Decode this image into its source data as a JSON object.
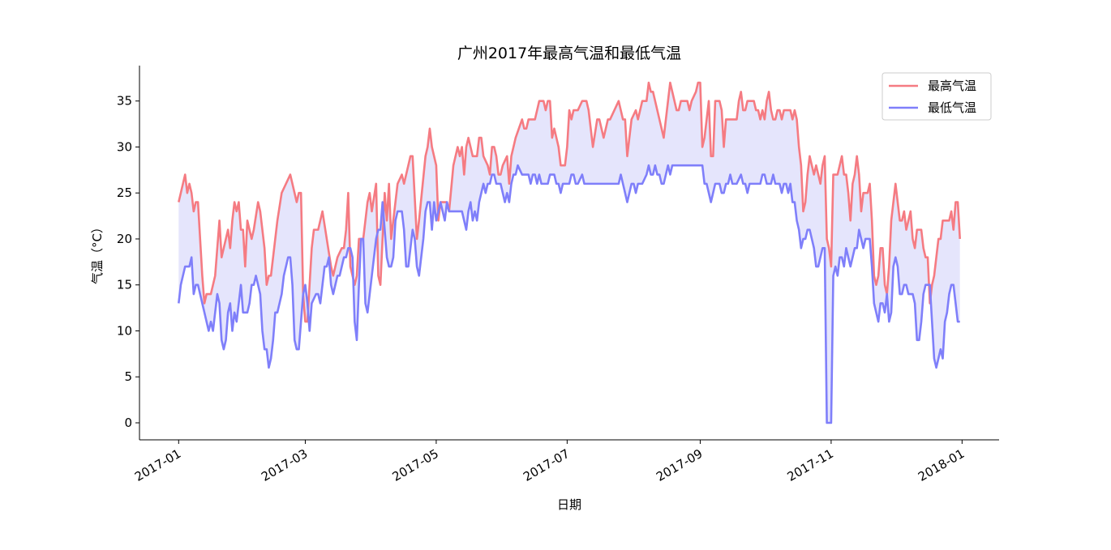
{
  "chart_data": {
    "type": "line",
    "title": "广州2017年最高气温和最低气温",
    "xlabel": "日期",
    "ylabel": "气温（°C）",
    "xlim": [
      -18.25,
      382.25
    ],
    "ylim": [
      -1.85,
      38.85
    ],
    "xticks": [
      {
        "value": 0,
        "label": "2017-01"
      },
      {
        "value": 59,
        "label": "2017-03"
      },
      {
        "value": 120,
        "label": "2017-05"
      },
      {
        "value": 181,
        "label": "2017-07"
      },
      {
        "value": 243,
        "label": "2017-09"
      },
      {
        "value": 304,
        "label": "2017-11"
      },
      {
        "value": 365,
        "label": "2018-01"
      }
    ],
    "yticks": [
      0,
      5,
      10,
      15,
      20,
      25,
      30,
      35
    ],
    "legend": "upper right",
    "fill_color": "#e5e5fc",
    "series": [
      {
        "name": "最高气温",
        "color": "#f57b82",
        "x": [
          0,
          3,
          4,
          5,
          6,
          7,
          8,
          9,
          11,
          12,
          13,
          15,
          17,
          19,
          20,
          22,
          23,
          24,
          25,
          26,
          27,
          28,
          29,
          30,
          31,
          32,
          34,
          35,
          37,
          38,
          40,
          41,
          42,
          43,
          46,
          48,
          50,
          52,
          54,
          55,
          56,
          57,
          58,
          59,
          60,
          62,
          63,
          65,
          67,
          69,
          71,
          72,
          74,
          76,
          77,
          78,
          79,
          80,
          82,
          83,
          84,
          86,
          88,
          89,
          90,
          92,
          93,
          94,
          96,
          97,
          98,
          99,
          101,
          102,
          104,
          105,
          107,
          108,
          109,
          111,
          112,
          115,
          116,
          117,
          118,
          120,
          121,
          122,
          125,
          126,
          128,
          130,
          131,
          132,
          133,
          134,
          135,
          137,
          139,
          140,
          141,
          142,
          144,
          145,
          146,
          147,
          148,
          149,
          150,
          151,
          153,
          154,
          155,
          157,
          160,
          161,
          162,
          163,
          166,
          168,
          170,
          171,
          172,
          173,
          174,
          175,
          177,
          178,
          179,
          180,
          181,
          182,
          183,
          184,
          186,
          188,
          190,
          191,
          193,
          195,
          196,
          197,
          198,
          200,
          201,
          203,
          205,
          206,
          207,
          208,
          209,
          211,
          213,
          214,
          216,
          218,
          219,
          220,
          221,
          222,
          223,
          225,
          226,
          227,
          229,
          230,
          232,
          233,
          234,
          237,
          238,
          239,
          241,
          242,
          243,
          244,
          245,
          246,
          247,
          248,
          249,
          250,
          252,
          253,
          254,
          255,
          257,
          260,
          261,
          262,
          263,
          264,
          265,
          268,
          269,
          270,
          271,
          272,
          273,
          274,
          275,
          276,
          277,
          278,
          279,
          280,
          281,
          282,
          285,
          286,
          287,
          288,
          289,
          290,
          291,
          292,
          293,
          294,
          295,
          296,
          297,
          298,
          299,
          300,
          301,
          302,
          303,
          304,
          305,
          306,
          307,
          308,
          309,
          310,
          311,
          312,
          313,
          314,
          315,
          316,
          317,
          318,
          319,
          320,
          321,
          322,
          323,
          324,
          325,
          326,
          327,
          328,
          329,
          330,
          331,
          332,
          333,
          334,
          335,
          336,
          337,
          338,
          339,
          340,
          341,
          342,
          343,
          344,
          345,
          346,
          347,
          348,
          349,
          350,
          351,
          352,
          353,
          354,
          355,
          356,
          357,
          358,
          359,
          360,
          361,
          362,
          363,
          364
        ],
        "values": [
          24,
          27,
          25,
          26,
          25,
          23,
          24,
          24,
          16,
          13,
          14,
          14,
          16,
          22,
          18,
          20,
          21,
          19,
          22,
          24,
          23,
          24,
          21,
          21,
          17,
          22,
          20,
          21,
          24,
          23,
          19,
          15,
          16,
          16,
          22,
          25,
          26,
          27,
          25,
          24,
          25,
          25,
          14,
          11,
          11,
          19,
          21,
          21,
          23,
          20,
          17,
          16,
          18,
          19,
          19,
          21,
          25,
          17,
          15,
          16,
          20,
          20,
          24,
          25,
          23,
          26,
          16,
          15,
          25,
          22,
          26,
          20,
          24,
          26,
          27,
          26,
          28,
          29,
          29,
          20,
          22,
          29,
          30,
          32,
          30,
          28,
          22,
          24,
          24,
          23,
          28,
          30,
          29,
          30,
          27,
          30,
          31,
          29,
          29,
          31,
          31,
          29,
          28,
          27,
          30,
          30,
          29,
          27,
          27,
          28,
          29,
          26,
          29,
          31,
          33,
          32,
          32,
          33,
          33,
          35,
          35,
          34,
          35,
          35,
          31,
          32,
          30,
          28,
          28,
          28,
          30,
          34,
          33,
          34,
          34,
          35,
          35,
          34,
          30,
          33,
          33,
          32,
          31,
          33,
          33,
          34,
          35,
          34,
          33,
          33,
          29,
          33,
          34,
          33,
          35,
          35,
          37,
          36,
          36,
          35,
          34,
          32,
          31,
          33,
          37,
          36,
          34,
          34,
          35,
          35,
          34,
          35,
          36,
          37,
          37,
          30,
          31,
          33,
          35,
          29,
          29,
          35,
          35,
          34,
          30,
          33,
          33,
          33,
          35,
          36,
          34,
          34,
          35,
          35,
          34,
          34,
          33,
          34,
          33,
          35,
          36,
          34,
          33,
          33,
          34,
          34,
          33,
          34,
          34,
          33,
          34,
          33,
          30,
          28,
          23,
          24,
          27,
          29,
          28,
          27,
          28,
          27,
          26,
          28,
          29,
          20,
          19,
          17,
          27,
          27,
          27,
          28,
          29,
          27,
          27,
          25,
          22,
          26,
          27,
          29,
          27,
          23,
          25,
          25,
          25,
          26,
          22,
          16,
          15,
          16,
          19,
          19,
          15,
          14,
          17,
          22,
          24,
          26,
          24,
          22,
          22,
          23,
          21,
          22,
          23,
          20,
          19,
          21,
          21,
          21,
          19,
          18,
          18,
          13,
          15,
          16,
          18,
          20,
          20,
          22,
          22,
          22,
          22,
          23,
          21,
          24,
          24,
          20
        ]
      },
      {
        "name": "最低气温",
        "color": "#7f7ffa",
        "x": [
          0,
          1,
          2,
          3,
          5,
          6,
          7,
          8,
          9,
          11,
          13,
          14,
          15,
          16,
          17,
          18,
          19,
          20,
          21,
          22,
          23,
          24,
          25,
          26,
          27,
          28,
          29,
          30,
          32,
          33,
          34,
          35,
          36,
          37,
          38,
          39,
          40,
          41,
          42,
          43,
          44,
          45,
          46,
          47,
          48,
          49,
          50,
          51,
          52,
          53,
          54,
          55,
          56,
          57,
          58,
          59,
          60,
          61,
          62,
          64,
          65,
          66,
          67,
          68,
          69,
          70,
          71,
          72,
          73,
          74,
          75,
          76,
          77,
          78,
          79,
          80,
          81,
          82,
          83,
          84,
          85,
          86,
          87,
          88,
          89,
          90,
          91,
          92,
          93,
          94,
          95,
          96,
          97,
          98,
          99,
          100,
          101,
          102,
          104,
          105,
          106,
          107,
          108,
          109,
          110,
          111,
          112,
          113,
          114,
          115,
          116,
          117,
          118,
          119,
          120,
          121,
          122,
          123,
          124,
          125,
          126,
          128,
          130,
          132,
          133,
          134,
          135,
          136,
          137,
          138,
          139,
          140,
          141,
          142,
          143,
          144,
          145,
          146,
          147,
          148,
          150,
          151,
          152,
          153,
          154,
          155,
          156,
          157,
          158,
          160,
          162,
          163,
          164,
          165,
          166,
          167,
          168,
          169,
          170,
          171,
          172,
          173,
          175,
          176,
          177,
          178,
          179,
          180,
          181,
          182,
          183,
          184,
          185,
          186,
          188,
          189,
          190,
          200,
          205,
          206,
          207,
          208,
          209,
          210,
          211,
          212,
          213,
          214,
          215,
          216,
          218,
          219,
          220,
          221,
          222,
          223,
          224,
          225,
          226,
          227,
          228,
          229,
          230,
          235,
          240,
          244,
          245,
          246,
          247,
          248,
          249,
          250,
          252,
          253,
          254,
          255,
          256,
          257,
          258,
          260,
          262,
          263,
          264,
          265,
          266,
          270,
          271,
          272,
          273,
          274,
          275,
          276,
          277,
          278,
          279,
          280,
          281,
          282,
          283,
          284,
          285,
          286,
          287,
          288,
          289,
          290,
          291,
          292,
          293,
          294,
          295,
          296,
          297,
          298,
          299,
          300,
          301,
          302,
          303,
          304,
          305,
          306,
          307,
          308,
          309,
          310,
          311,
          312,
          313,
          314,
          315,
          316,
          317,
          318,
          319,
          320,
          321,
          322,
          323,
          324,
          325,
          326,
          327,
          328,
          329,
          330,
          331,
          332,
          333,
          334,
          335,
          336,
          337,
          338,
          339,
          340,
          341,
          342,
          343,
          344,
          345,
          346,
          347,
          348,
          349,
          350,
          351,
          352,
          353,
          354,
          355,
          356,
          357,
          358,
          359,
          360,
          361,
          362,
          363,
          364
        ],
        "values": [
          13,
          15,
          16,
          17,
          17,
          18,
          14,
          15,
          15,
          13,
          11,
          10,
          11,
          10,
          12,
          14,
          13,
          9,
          8,
          9,
          12,
          13,
          10,
          12,
          11,
          13,
          15,
          12,
          12,
          13,
          15,
          15,
          16,
          15,
          14,
          10,
          8,
          8,
          6,
          7,
          9,
          12,
          12,
          13,
          14,
          16,
          17,
          18,
          18,
          15,
          9,
          8,
          8,
          11,
          14,
          15,
          13,
          10,
          13,
          14,
          14,
          13,
          15,
          17,
          17,
          18,
          15,
          14,
          15,
          16,
          16,
          17,
          18,
          18,
          19,
          19,
          18,
          11,
          9,
          15,
          20,
          20,
          13,
          12,
          14,
          16,
          18,
          20,
          21,
          21,
          24,
          21,
          18,
          17,
          17,
          18,
          22,
          23,
          23,
          21,
          17,
          17,
          19,
          21,
          20,
          17,
          16,
          18,
          20,
          23,
          24,
          24,
          21,
          24,
          22,
          23,
          24,
          23,
          22,
          24,
          23,
          23,
          23,
          23,
          22,
          21,
          23,
          24,
          22,
          23,
          22,
          24,
          25,
          26,
          25,
          26,
          26,
          27,
          27,
          26,
          26,
          25,
          24,
          25,
          24,
          26,
          27,
          27,
          28,
          27,
          27,
          27,
          26,
          27,
          27,
          26,
          27,
          26,
          26,
          26,
          26,
          27,
          27,
          26,
          26,
          25,
          26,
          26,
          26,
          26,
          27,
          27,
          26,
          26,
          27,
          26,
          26,
          26,
          26,
          27,
          26,
          25,
          24,
          25,
          26,
          26,
          25,
          26,
          26,
          26,
          27,
          28,
          27,
          27,
          28,
          27,
          27,
          26,
          26,
          27,
          28,
          27,
          28,
          28,
          28,
          28,
          26,
          26,
          25,
          24,
          25,
          26,
          26,
          25,
          25,
          26,
          26,
          27,
          26,
          26,
          27,
          26,
          26,
          25,
          26,
          26,
          26,
          27,
          27,
          26,
          26,
          26,
          27,
          26,
          26,
          26,
          25,
          26,
          26,
          25,
          26,
          24,
          24,
          22,
          21,
          19,
          20,
          20,
          21,
          21,
          20,
          19,
          17,
          17,
          18,
          19,
          19,
          0,
          0,
          0,
          16,
          17,
          16,
          18,
          18,
          17,
          19,
          18,
          17,
          18,
          19,
          19,
          21,
          20,
          19,
          20,
          20,
          20,
          17,
          13,
          12,
          11,
          13,
          13,
          12,
          14,
          11,
          12,
          17,
          18,
          17,
          14,
          14,
          15,
          15,
          14,
          14,
          14,
          13,
          9,
          9,
          11,
          14,
          15,
          15,
          15,
          11,
          7,
          6,
          7,
          8,
          7,
          11,
          12,
          14,
          15,
          15,
          13,
          11,
          11
        ]
      }
    ]
  }
}
